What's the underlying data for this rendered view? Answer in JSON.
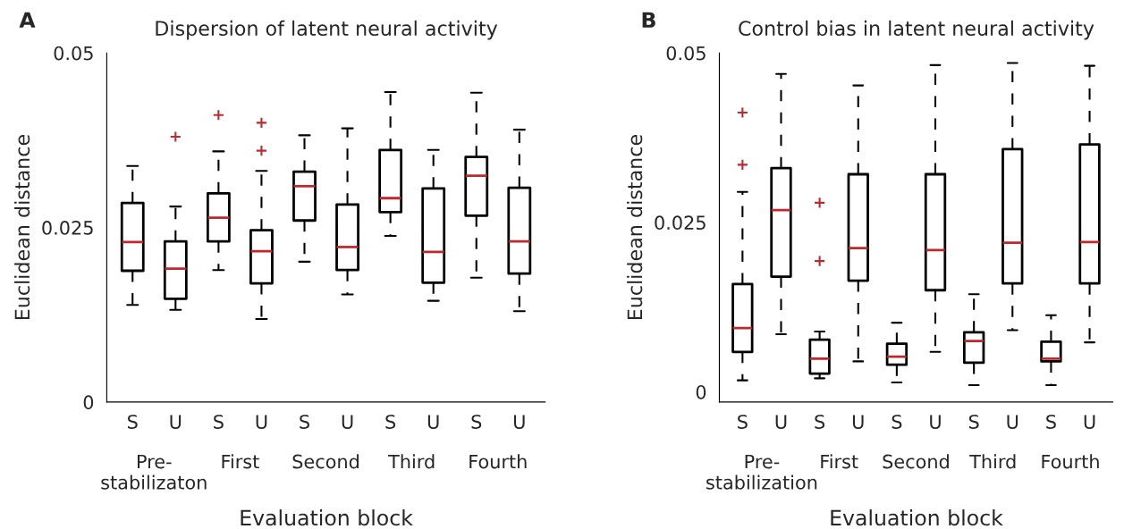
{
  "chart_data": [
    {
      "type": "box",
      "title": "Dispersion of latent neural activity",
      "ylabel": "Euclidean distance",
      "xlabel": "Evaluation block",
      "categories": [
        "S",
        "U",
        "S",
        "U",
        "S",
        "U",
        "S",
        "U",
        "S",
        "U"
      ],
      "ylim": [
        0,
        0.05
      ],
      "yticks": [
        0,
        0.025,
        0.05
      ],
      "grid": false,
      "legend": false,
      "annotations": [
        "A",
        "Pre-\nstabilizaton",
        "First",
        "Second",
        "Third",
        "Fourth"
      ],
      "boxes": [
        {
          "low": 0.0139,
          "q1": 0.0188,
          "median": 0.0229,
          "q3": 0.0285,
          "high": 0.0338
        },
        {
          "low": 0.0132,
          "q1": 0.0148,
          "median": 0.0191,
          "q3": 0.023,
          "high": 0.028,
          "outliers": [
            0.038
          ]
        },
        {
          "low": 0.0189,
          "q1": 0.023,
          "median": 0.0264,
          "q3": 0.0299,
          "high": 0.0359,
          "outliers": [
            0.0411
          ]
        },
        {
          "low": 0.0119,
          "q1": 0.017,
          "median": 0.0216,
          "q3": 0.0246,
          "high": 0.0331,
          "outliers": [
            0.04,
            0.036
          ]
        },
        {
          "low": 0.0201,
          "q1": 0.026,
          "median": 0.0309,
          "q3": 0.033,
          "high": 0.0382
        },
        {
          "low": 0.0154,
          "q1": 0.0189,
          "median": 0.0222,
          "q3": 0.0283,
          "high": 0.0392
        },
        {
          "low": 0.0238,
          "q1": 0.0272,
          "median": 0.0292,
          "q3": 0.0361,
          "high": 0.0444
        },
        {
          "low": 0.0145,
          "q1": 0.0171,
          "median": 0.0215,
          "q3": 0.0306,
          "high": 0.0361
        },
        {
          "low": 0.0178,
          "q1": 0.0267,
          "median": 0.0324,
          "q3": 0.0351,
          "high": 0.0443
        },
        {
          "low": 0.013,
          "q1": 0.0184,
          "median": 0.023,
          "q3": 0.0307,
          "high": 0.039
        }
      ]
    },
    {
      "type": "box",
      "title": "Control bias in latent neural activity",
      "ylabel": "Euclidean distance",
      "xlabel": "Evaluation block",
      "categories": [
        "S",
        "U",
        "S",
        "U",
        "S",
        "U",
        "S",
        "U",
        "S",
        "U"
      ],
      "ylim": [
        -0.0015,
        0.05
      ],
      "yticks": [
        0,
        0.025,
        0.05
      ],
      "grid": false,
      "legend": false,
      "annotations": [
        "B",
        "Pre-\nstabilization",
        "First",
        "Second",
        "Third",
        "Fourth"
      ],
      "boxes": [
        {
          "low": 0.0017,
          "q1": 0.0059,
          "median": 0.0094,
          "q3": 0.0159,
          "high": 0.0295,
          "outliers": [
            0.0412,
            0.0335
          ]
        },
        {
          "low": 0.0085,
          "q1": 0.017,
          "median": 0.0268,
          "q3": 0.033,
          "high": 0.0469
        },
        {
          "low": 0.002,
          "q1": 0.0027,
          "median": 0.0049,
          "q3": 0.0077,
          "high": 0.0089,
          "outliers": [
            0.0279,
            0.0193
          ]
        },
        {
          "low": 0.0045,
          "q1": 0.0164,
          "median": 0.0212,
          "q3": 0.0321,
          "high": 0.0452
        },
        {
          "low": 0.0014,
          "q1": 0.004,
          "median": 0.0052,
          "q3": 0.0071,
          "high": 0.0102
        },
        {
          "low": 0.0059,
          "q1": 0.015,
          "median": 0.0209,
          "q3": 0.0321,
          "high": 0.0482
        },
        {
          "low": 0.001,
          "q1": 0.0043,
          "median": 0.0075,
          "q3": 0.0088,
          "high": 0.0144
        },
        {
          "low": 0.0091,
          "q1": 0.016,
          "median": 0.022,
          "q3": 0.0358,
          "high": 0.0485
        },
        {
          "low": 0.001,
          "q1": 0.0045,
          "median": 0.0049,
          "q3": 0.0074,
          "high": 0.0113
        },
        {
          "low": 0.0073,
          "q1": 0.016,
          "median": 0.0221,
          "q3": 0.0365,
          "high": 0.0481
        }
      ]
    }
  ]
}
